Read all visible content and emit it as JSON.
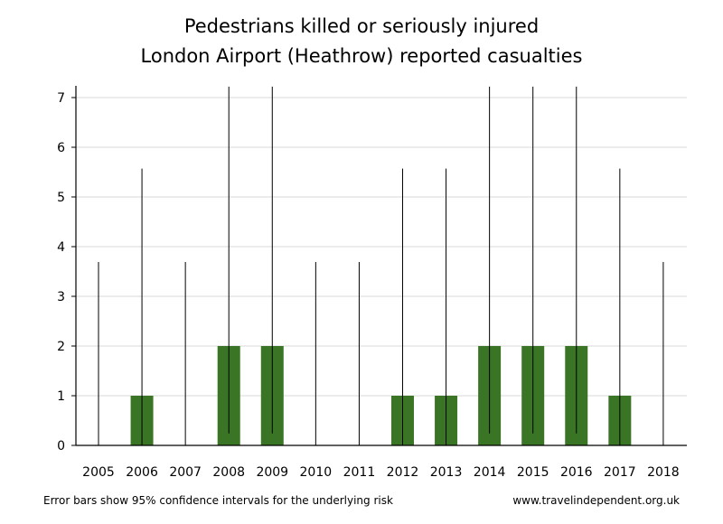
{
  "chart_data": {
    "type": "bar",
    "title": "Pedestrians killed or seriously injured",
    "subtitle": "London Airport (Heathrow) reported casualties",
    "xlabel": "",
    "ylabel": "",
    "categories": [
      "2005",
      "2006",
      "2007",
      "2008",
      "2009",
      "2010",
      "2011",
      "2012",
      "2013",
      "2014",
      "2015",
      "2016",
      "2017",
      "2018"
    ],
    "values": [
      0,
      1,
      0,
      2,
      2,
      0,
      0,
      1,
      1,
      2,
      2,
      2,
      1,
      0
    ],
    "error_bars": {
      "lower": [
        0,
        0,
        0,
        0.24,
        0.24,
        0,
        0,
        0,
        0,
        0.24,
        0.24,
        0.24,
        0,
        0
      ],
      "upper": [
        3.69,
        5.57,
        3.69,
        7.22,
        7.22,
        3.69,
        3.69,
        5.57,
        5.57,
        7.22,
        7.22,
        7.22,
        5.57,
        3.69
      ]
    },
    "ylim": [
      0,
      7.2
    ],
    "yticks": [
      0,
      1,
      2,
      3,
      4,
      5,
      6,
      7
    ],
    "grid": true,
    "bar_color": "#3a7525",
    "legend": "none"
  },
  "footer": {
    "note": "Error bars show 95% confidence intervals for the underlying risk",
    "source": "www.travelindependent.org.uk"
  }
}
